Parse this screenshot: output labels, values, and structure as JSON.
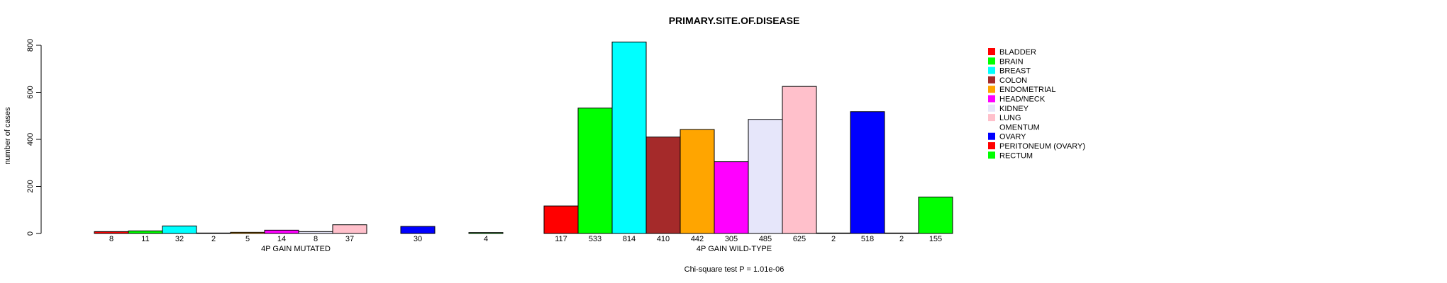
{
  "chart_data": {
    "type": "bar",
    "title": "PRIMARY.SITE.OF.DISEASE",
    "ylabel": "number of cases",
    "ylim": [
      0,
      800
    ],
    "yticks": [
      0,
      200,
      400,
      600,
      800
    ],
    "footer": "Chi-square test P = 1.01e-06",
    "categories": [
      "BLADDER",
      "BRAIN",
      "BREAST",
      "COLON",
      "ENDOMETRIAL",
      "HEAD/NECK",
      "KIDNEY",
      "LUNG",
      "OMENTUM",
      "OVARY",
      "PERITONEUM (OVARY)",
      "RECTUM"
    ],
    "colors": [
      "#ff0000",
      "#00ff00",
      "#00ffff",
      "#a52a2a",
      "#ffa500",
      "#ff00ff",
      "#e6e6fa",
      "#ffc0cb",
      "#ffffff",
      "#0000ff",
      "#ff0000",
      "#00ff00"
    ],
    "groups": [
      {
        "name": "4P GAIN MUTATED",
        "values": [
          8,
          11,
          32,
          2,
          5,
          14,
          8,
          37,
          0,
          30,
          0,
          4
        ],
        "labels": [
          "8",
          "11",
          "32",
          "2",
          "5",
          "14",
          "8",
          "37",
          "",
          "30",
          "",
          "4"
        ]
      },
      {
        "name": "4P GAIN WILD-TYPE",
        "values": [
          117,
          533,
          814,
          410,
          442,
          305,
          485,
          625,
          2,
          518,
          2,
          155
        ],
        "labels": [
          "117",
          "533",
          "814",
          "410",
          "442",
          "305",
          "485",
          "625",
          "2",
          "518",
          "2",
          "155"
        ]
      }
    ],
    "legend": {
      "position": "right",
      "entries": [
        "BLADDER",
        "BRAIN",
        "BREAST",
        "COLON",
        "ENDOMETRIAL",
        "HEAD/NECK",
        "KIDNEY",
        "LUNG",
        "OMENTUM",
        "OVARY",
        "PERITONEUM (OVARY)",
        "RECTUM"
      ]
    }
  }
}
